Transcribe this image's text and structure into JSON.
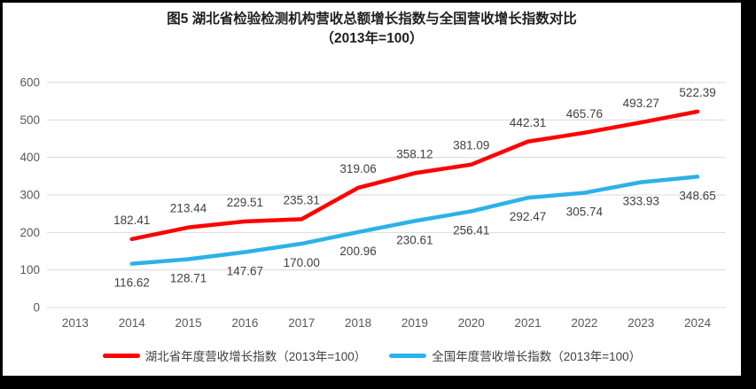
{
  "chart_data": {
    "type": "line",
    "title": "图5 湖北省检验检测机构营收总额增长指数与全国营收增长指数对比",
    "subtitle": "（2013年=100）",
    "categories": [
      "2013",
      "2014",
      "2015",
      "2016",
      "2017",
      "2018",
      "2019",
      "2020",
      "2021",
      "2022",
      "2023",
      "2024"
    ],
    "series": [
      {
        "name": "湖北省年度营收增长指数（2013年=100）",
        "color": "#FF0000",
        "label_position": "above",
        "values": [
          null,
          182.41,
          213.44,
          229.51,
          235.31,
          319.06,
          358.12,
          381.09,
          442.31,
          465.76,
          493.27,
          522.39
        ]
      },
      {
        "name": "全国年度营收增长指数（2013年=100）",
        "color": "#2BB2E8",
        "label_position": "below",
        "values": [
          null,
          116.62,
          128.71,
          147.67,
          170.0,
          200.96,
          230.61,
          256.41,
          292.47,
          305.74,
          333.93,
          348.65
        ]
      }
    ],
    "ylim": [
      0,
      600
    ],
    "yticks": [
      0,
      100,
      200,
      300,
      400,
      500,
      600
    ],
    "grid": true,
    "legend_position": "bottom",
    "colors": {
      "gridline": "#D9D9D9",
      "tick_label": "#595959",
      "data_label": "#404040",
      "title": "#1F1F1F",
      "frame": "#000000",
      "background": "#FFFFFF"
    }
  }
}
